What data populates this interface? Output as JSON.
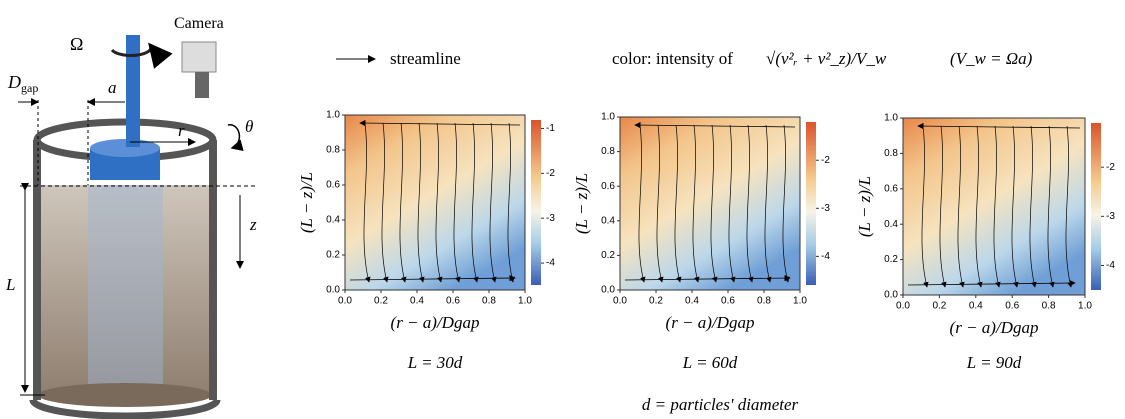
{
  "apparatus": {
    "omega": "Ω",
    "camera": "Camera",
    "d_gap": {
      "main": "D",
      "sub": "gap"
    },
    "a": "a",
    "r": "r",
    "theta": "θ",
    "z": "z",
    "L": "L"
  },
  "legend": {
    "streamline": "streamline",
    "color_text": "color: intensity of",
    "formula": "√(v²ᵣ + v²_z)/V_w",
    "note": "(V_w = Ωa)"
  },
  "panels": [
    {
      "caption": "L = 30d",
      "xlabel": "(r − a)/Dgap",
      "ylabel": "(L − z)/L",
      "xlim": [
        0,
        1
      ],
      "ylim": [
        0,
        1
      ],
      "xticks": [
        {
          "value": 0,
          "label": "0.0"
        },
        {
          "value": 0.2,
          "label": "0.2"
        },
        {
          "value": 0.4,
          "label": "0.4"
        },
        {
          "value": 0.6,
          "label": "0.6"
        },
        {
          "value": 0.8,
          "label": "0.8"
        },
        {
          "value": 1,
          "label": "1.0"
        }
      ],
      "yticks": [
        {
          "value": 0,
          "label": "0.0"
        },
        {
          "value": 0.2,
          "label": "0.2"
        },
        {
          "value": 0.4,
          "label": "0.4"
        },
        {
          "value": 0.6,
          "label": "0.6"
        },
        {
          "value": 0.8,
          "label": "0.8"
        },
        {
          "value": 1,
          "label": "1.0"
        }
      ],
      "clim": [
        -4.6,
        -0.7
      ],
      "cticks": [
        -1,
        -2,
        -3,
        -4
      ]
    },
    {
      "caption": "L = 60d",
      "xlabel": "(r − a)/Dgap",
      "ylabel": "(L − z)/L",
      "xlim": [
        0,
        1
      ],
      "ylim": [
        0,
        1
      ],
      "xticks": [
        {
          "value": 0,
          "label": "0.0"
        },
        {
          "value": 0.2,
          "label": "0.2"
        },
        {
          "value": 0.4,
          "label": "0.4"
        },
        {
          "value": 0.6,
          "label": "0.6"
        },
        {
          "value": 0.8,
          "label": "0.8"
        },
        {
          "value": 1,
          "label": "1.0"
        }
      ],
      "yticks": [
        {
          "value": 0,
          "label": "0.0"
        },
        {
          "value": 0.2,
          "label": "0.2"
        },
        {
          "value": 0.4,
          "label": "0.4"
        },
        {
          "value": 0.6,
          "label": "0.6"
        },
        {
          "value": 0.8,
          "label": "0.8"
        },
        {
          "value": 1,
          "label": "1.0"
        }
      ],
      "clim": [
        -4.7,
        -1.1
      ],
      "cticks": [
        -2,
        -3,
        -4
      ]
    },
    {
      "caption": "L = 90d",
      "xlabel": "(r − a)/Dgap",
      "ylabel": "(L − z)/L",
      "xlim": [
        0,
        1
      ],
      "ylim": [
        0,
        1
      ],
      "xticks": [
        {
          "value": 0,
          "label": "0.0"
        },
        {
          "value": 0.2,
          "label": "0.2"
        },
        {
          "value": 0.4,
          "label": "0.4"
        },
        {
          "value": 0.6,
          "label": "0.6"
        },
        {
          "value": 0.8,
          "label": "0.8"
        },
        {
          "value": 1,
          "label": "1.0"
        }
      ],
      "yticks": [
        {
          "value": 0,
          "label": "0.0"
        },
        {
          "value": 0.2,
          "label": "0.2"
        },
        {
          "value": 0.4,
          "label": "0.4"
        },
        {
          "value": 0.6,
          "label": "0.6"
        },
        {
          "value": 0.8,
          "label": "0.8"
        },
        {
          "value": 1,
          "label": "1.0"
        }
      ],
      "clim": [
        -4.6,
        -1.0
      ],
      "cticks": [
        -2,
        -3,
        -4
      ]
    }
  ],
  "footer": "d = particles' diameter"
}
